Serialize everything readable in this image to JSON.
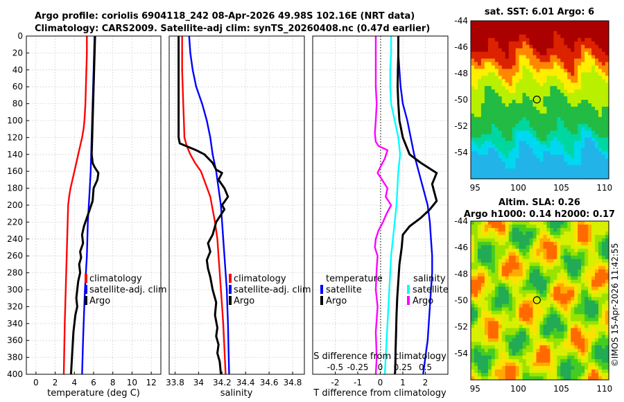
{
  "figure": {
    "title_line1": "Argo profile: coriolis 6904118_242 08-Apr-2026 49.98S 102.16E (NRT data)",
    "title_line2": "Climatology: CARS2009. Satellite-adj clim: synTS_20260408.nc (0.47d earlier)",
    "copyright": "©IMOS 15-Apr-2026 11:42:55"
  },
  "colors": {
    "argo": "#000000",
    "climatology": "#ff0000",
    "satellite_adj": "#0000ff",
    "diff_temperature_sat": "#0000ff",
    "diff_temperature_argo": "#000000",
    "diff_salinity_sat": "#00ffff",
    "diff_salinity_argo": "#ff00ff",
    "grid": "#c8c8c8"
  },
  "chart_data": [
    {
      "type": "line",
      "id": "temperature",
      "xlabel": "temperature (deg C)",
      "ylabel": "",
      "xlim": [
        -1,
        13
      ],
      "ylim": [
        400,
        0
      ],
      "xticks": [
        "0",
        "2",
        "4",
        "6",
        "8",
        "10",
        "12"
      ],
      "xtick_values": [
        0,
        2,
        4,
        6,
        8,
        10,
        12
      ],
      "yticks": [
        "0",
        "20",
        "40",
        "60",
        "80",
        "100",
        "120",
        "140",
        "160",
        "180",
        "200",
        "220",
        "240",
        "260",
        "280",
        "300",
        "320",
        "340",
        "360",
        "380",
        "400"
      ],
      "ytick_values": [
        0,
        20,
        40,
        60,
        80,
        100,
        120,
        140,
        160,
        180,
        200,
        220,
        240,
        260,
        280,
        300,
        320,
        340,
        360,
        380,
        400
      ],
      "grid": true,
      "legend": [
        "climatology",
        "satellite-adj. clim",
        "Argo"
      ],
      "legend_placement": "lower-right",
      "series": [
        {
          "name": "climatology",
          "color_key": "climatology",
          "x": [
            5.3,
            5.3,
            5.25,
            5.2,
            5.15,
            5.1,
            5.05,
            4.95,
            4.8,
            4.6,
            4.4,
            4.2,
            4.0,
            3.8,
            3.6,
            3.45,
            3.35,
            3.3,
            3.25,
            3.2,
            3.15,
            3.1,
            3.05,
            3.0,
            2.95,
            2.9
          ],
          "y": [
            0,
            20,
            40,
            60,
            80,
            90,
            100,
            110,
            120,
            130,
            140,
            150,
            160,
            170,
            180,
            190,
            200,
            220,
            240,
            260,
            280,
            300,
            320,
            340,
            370,
            400
          ]
        },
        {
          "name": "satellite-adj. clim",
          "color_key": "satellite_adj",
          "x": [
            6.1,
            6.05,
            6.0,
            5.95,
            5.9,
            5.85,
            5.8,
            5.75,
            5.7,
            5.6,
            5.5,
            5.4,
            5.35,
            5.3,
            5.2,
            5.1,
            5.0,
            4.9,
            4.8
          ],
          "y": [
            0,
            20,
            40,
            60,
            80,
            100,
            120,
            140,
            160,
            180,
            200,
            220,
            240,
            260,
            280,
            300,
            330,
            360,
            400
          ]
        },
        {
          "name": "Argo",
          "color_key": "argo",
          "x": [
            6.15,
            6.1,
            6.05,
            6.0,
            5.95,
            5.9,
            5.85,
            5.8,
            5.9,
            6.1,
            6.5,
            6.4,
            6.0,
            5.9,
            5.6,
            5.3,
            5.0,
            4.8,
            4.9,
            4.6,
            4.7,
            4.5,
            4.6,
            4.4,
            4.3,
            4.2,
            4.3,
            4.1,
            4.0,
            3.9,
            3.85,
            3.8,
            3.75,
            3.7,
            3.65
          ],
          "y": [
            0,
            20,
            40,
            60,
            80,
            100,
            120,
            140,
            150,
            155,
            162,
            170,
            180,
            195,
            205,
            215,
            225,
            235,
            245,
            255,
            262,
            270,
            280,
            290,
            300,
            310,
            320,
            330,
            340,
            350,
            360,
            370,
            380,
            390,
            400
          ]
        }
      ]
    },
    {
      "type": "line",
      "id": "salinity",
      "xlabel": "salinity",
      "xlim": [
        33.75,
        34.9
      ],
      "ylim": [
        400,
        0
      ],
      "xticks": [
        "33.8",
        "34",
        "34.2",
        "34.4",
        "34.6",
        "34.8"
      ],
      "xtick_values": [
        33.8,
        34.0,
        34.2,
        34.4,
        34.6,
        34.8
      ],
      "grid": true,
      "legend": [
        "climatology",
        "satellite-adj. clim",
        "Argo"
      ],
      "legend_placement": "lower-right",
      "series": [
        {
          "name": "climatology",
          "color_key": "climatology",
          "x": [
            33.86,
            33.86,
            33.86,
            33.865,
            33.87,
            33.875,
            33.88,
            33.9,
            33.93,
            33.97,
            34.02,
            34.06,
            34.1,
            34.12,
            34.14,
            34.16,
            34.17,
            34.18,
            34.19,
            34.2,
            34.21,
            34.22,
            34.23
          ],
          "y": [
            0,
            20,
            40,
            60,
            80,
            100,
            120,
            130,
            140,
            150,
            160,
            175,
            190,
            205,
            220,
            240,
            260,
            280,
            300,
            320,
            340,
            370,
            400
          ]
        },
        {
          "name": "satellite-adj. clim",
          "color_key": "satellite_adj",
          "x": [
            33.92,
            33.93,
            33.95,
            33.98,
            34.03,
            34.07,
            34.1,
            34.12,
            34.15,
            34.17,
            34.19,
            34.2,
            34.21,
            34.22,
            34.23,
            34.24,
            34.245,
            34.25,
            34.255,
            34.26
          ],
          "y": [
            0,
            20,
            40,
            60,
            80,
            100,
            120,
            140,
            160,
            180,
            200,
            220,
            240,
            260,
            280,
            300,
            320,
            340,
            370,
            400
          ]
        },
        {
          "name": "Argo",
          "color_key": "argo",
          "x": [
            33.83,
            33.83,
            33.83,
            33.83,
            33.83,
            33.83,
            33.83,
            33.83,
            33.84,
            33.98,
            34.05,
            34.12,
            34.15,
            34.2,
            34.17,
            34.22,
            34.25,
            34.2,
            34.22,
            34.15,
            34.12,
            34.08,
            34.1,
            34.07,
            34.08,
            34.1,
            34.12,
            34.15,
            34.14,
            34.16,
            34.15,
            34.17,
            34.16,
            34.18,
            34.19
          ],
          "y": [
            0,
            20,
            40,
            60,
            80,
            100,
            110,
            120,
            127,
            135,
            140,
            150,
            158,
            162,
            170,
            180,
            190,
            200,
            205,
            220,
            235,
            245,
            255,
            265,
            275,
            285,
            300,
            315,
            330,
            345,
            355,
            365,
            375,
            385,
            400
          ]
        }
      ]
    },
    {
      "type": "line",
      "id": "difference",
      "xlabel": "T difference from climatology",
      "xlabel_top": "S difference from climatology",
      "xlim": [
        -3,
        3
      ],
      "ylim": [
        400,
        0
      ],
      "xticks": [
        "-2",
        "-1",
        "0",
        "1",
        "2"
      ],
      "xtick_values": [
        -2,
        -1,
        0,
        1,
        2
      ],
      "xticks_top": [
        "-0.5",
        "-0.25",
        "0",
        "0.25",
        "0.5"
      ],
      "xtick_values_top": [
        -0.5,
        -0.25,
        0,
        0.25,
        0.5
      ],
      "grid": true,
      "zero_line": true,
      "legend_left_title": "temperature",
      "legend_left": [
        "satellite",
        "Argo"
      ],
      "legend_right_title": "salinity",
      "legend_right": [
        "satellite",
        "Argo"
      ],
      "series": [
        {
          "name": "T satellite",
          "color_key": "diff_temperature_sat",
          "x": [
            0.8,
            0.8,
            0.85,
            0.9,
            1.0,
            1.2,
            1.35,
            1.5,
            1.7,
            1.9,
            2.1,
            2.2,
            2.25,
            2.3,
            2.3,
            2.25,
            2.2,
            2.15,
            2.1,
            2.05,
            2.0,
            1.95,
            1.9
          ],
          "y": [
            0,
            20,
            40,
            60,
            80,
            100,
            120,
            140,
            160,
            180,
            200,
            220,
            240,
            260,
            280,
            300,
            320,
            340,
            360,
            370,
            380,
            390,
            400
          ]
        },
        {
          "name": "T Argo",
          "color_key": "diff_temperature_argo",
          "x": [
            0.8,
            0.8,
            0.78,
            0.77,
            0.8,
            0.85,
            1.0,
            1.3,
            1.8,
            2.5,
            2.3,
            2.4,
            2.5,
            2.2,
            1.8,
            1.3,
            1.0,
            0.95,
            0.85,
            0.8,
            0.75,
            0.72,
            0.7,
            0.68,
            0.67,
            0.66,
            0.65
          ],
          "y": [
            0,
            20,
            40,
            60,
            80,
            100,
            120,
            140,
            150,
            162,
            175,
            185,
            195,
            205,
            215,
            225,
            235,
            250,
            270,
            290,
            310,
            330,
            350,
            370,
            385,
            395,
            400
          ]
        },
        {
          "name": "S satellite",
          "color_key": "diff_salinity_sat",
          "x": [
            0.12,
            0.12,
            0.11,
            0.11,
            0.12,
            0.16,
            0.2,
            0.22,
            0.2,
            0.19,
            0.18,
            0.16,
            0.14,
            0.12,
            0.11,
            0.1,
            0.09,
            0.08,
            0.07,
            0.06,
            0.05
          ],
          "y": [
            0,
            20,
            40,
            60,
            80,
            100,
            120,
            140,
            160,
            180,
            200,
            220,
            240,
            260,
            280,
            300,
            320,
            340,
            360,
            380,
            400
          ]
        },
        {
          "name": "S Argo",
          "color_key": "diff_salinity_argo",
          "x": [
            -0.05,
            -0.05,
            -0.05,
            -0.05,
            -0.04,
            -0.05,
            -0.06,
            -0.05,
            -0.02,
            0.08,
            0.05,
            0.0,
            -0.03,
            0.02,
            0.08,
            0.06,
            0.12,
            0.07,
            0.03,
            -0.02,
            -0.05,
            -0.06,
            -0.03,
            -0.04,
            -0.05,
            -0.03,
            -0.05,
            -0.04,
            -0.05
          ],
          "y": [
            0,
            20,
            40,
            60,
            80,
            100,
            115,
            125,
            130,
            135,
            145,
            155,
            162,
            170,
            180,
            190,
            200,
            210,
            220,
            230,
            240,
            250,
            260,
            275,
            300,
            320,
            350,
            380,
            400
          ]
        }
      ]
    },
    {
      "type": "heatmap",
      "id": "sst_map",
      "title": "sat. SST: 6.01 Argo: 6",
      "xlim": [
        94.5,
        110.5
      ],
      "ylim": [
        -56,
        -44
      ],
      "xticks": [
        "95",
        "100",
        "105",
        "110"
      ],
      "xtick_values": [
        95,
        100,
        105,
        110
      ],
      "yticks": [
        "-44",
        "-46",
        "-48",
        "-50",
        "-52",
        "-54"
      ],
      "ytick_values": [
        -44,
        -46,
        -48,
        -50,
        -52,
        -54
      ],
      "marker": {
        "lon": 102.16,
        "lat": -49.98
      }
    },
    {
      "type": "heatmap",
      "id": "sla_map",
      "title": "Altim. SLA: 0.26",
      "title_line2": "Argo h1000: 0.14 h2000: 0.17",
      "xlim": [
        94.5,
        110.5
      ],
      "ylim": [
        -56,
        -44
      ],
      "xticks": [
        "95",
        "100",
        "105",
        "110"
      ],
      "xtick_values": [
        95,
        100,
        105,
        110
      ],
      "yticks": [
        "-44",
        "-46",
        "-48",
        "-50",
        "-52",
        "-54"
      ],
      "ytick_values": [
        -44,
        -46,
        -48,
        -50,
        -52,
        -54
      ],
      "marker": {
        "lon": 102.16,
        "lat": -49.98
      }
    }
  ]
}
